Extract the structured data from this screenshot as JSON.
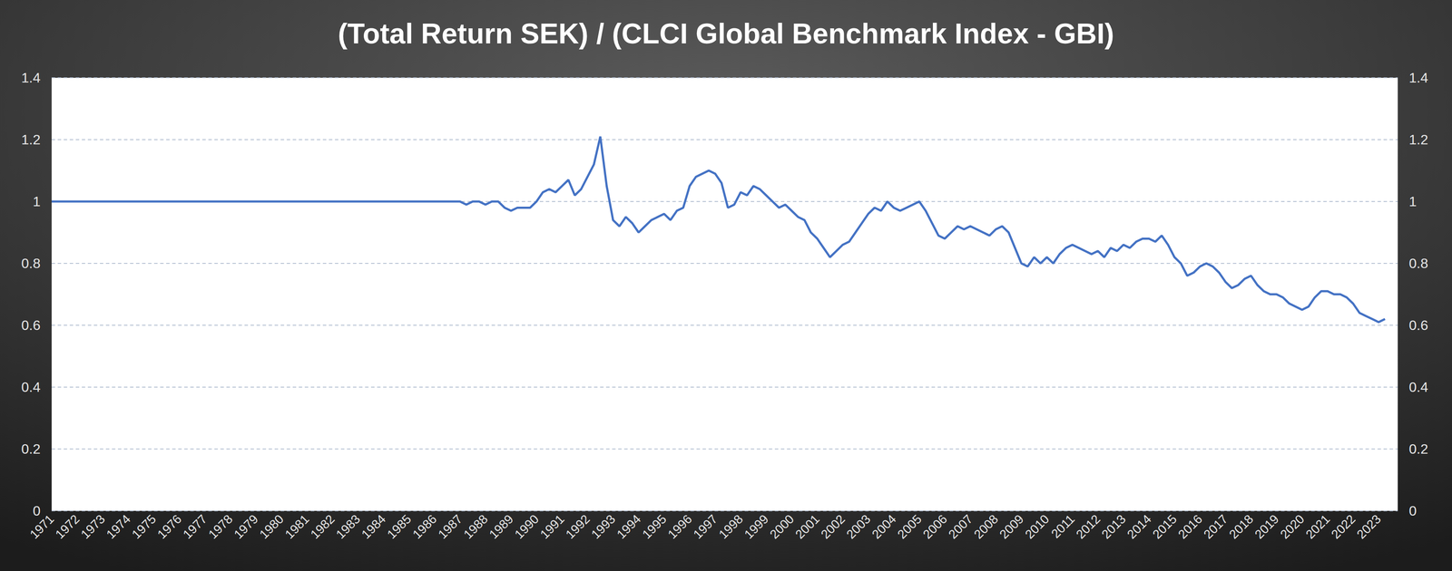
{
  "chart_data": {
    "type": "line",
    "title": "(Total Return SEK) / (CLCI Global Benchmark Index - GBI)",
    "categories": [
      "1971",
      null,
      null,
      null,
      "1972",
      null,
      null,
      null,
      "1973",
      null,
      null,
      null,
      "1974",
      null,
      null,
      null,
      "1975",
      null,
      null,
      null,
      "1976",
      null,
      null,
      null,
      "1977",
      null,
      null,
      null,
      "1978",
      null,
      null,
      null,
      "1979",
      null,
      null,
      null,
      "1980",
      null,
      null,
      null,
      "1981",
      null,
      null,
      null,
      "1982",
      null,
      null,
      null,
      "1983",
      null,
      null,
      null,
      "1984",
      null,
      null,
      null,
      "1985",
      null,
      null,
      null,
      "1986",
      null,
      null,
      null,
      "1987",
      null,
      null,
      null,
      "1988",
      null,
      null,
      null,
      "1989",
      null,
      null,
      null,
      "1990",
      null,
      null,
      null,
      "1991",
      null,
      null,
      null,
      "1992",
      null,
      null,
      null,
      "1993",
      null,
      null,
      null,
      "1994",
      null,
      null,
      null,
      "1995",
      null,
      null,
      null,
      "1996",
      null,
      null,
      null,
      "1997",
      null,
      null,
      null,
      "1998",
      null,
      null,
      null,
      "1999",
      null,
      null,
      null,
      "2000",
      null,
      null,
      null,
      "2001",
      null,
      null,
      null,
      "2002",
      null,
      null,
      null,
      "2003",
      null,
      null,
      null,
      "2004",
      null,
      null,
      null,
      "2005",
      null,
      null,
      null,
      "2006",
      null,
      null,
      null,
      "2007",
      null,
      null,
      null,
      "2008",
      null,
      null,
      null,
      "2009",
      null,
      null,
      null,
      "2010",
      null,
      null,
      null,
      "2011",
      null,
      null,
      null,
      "2012",
      null,
      null,
      null,
      "2013",
      null,
      null,
      null,
      "2014",
      null,
      null,
      null,
      "2015",
      null,
      null,
      null,
      "2016",
      null,
      null,
      null,
      "2017",
      null,
      null,
      null,
      "2018",
      null,
      null,
      null,
      "2019",
      null,
      null,
      null,
      "2020",
      null,
      null,
      null,
      "2021",
      null,
      null,
      null,
      "2022",
      null,
      null,
      null,
      "2023",
      null,
      null,
      null
    ],
    "values": [
      1,
      1,
      1,
      1,
      1,
      1,
      1,
      1,
      1,
      1,
      1,
      1,
      1,
      1,
      1,
      1,
      1,
      1,
      1,
      1,
      1,
      1,
      1,
      1,
      1,
      1,
      1,
      1,
      1,
      1,
      1,
      1,
      1,
      1,
      1,
      1,
      1,
      1,
      1,
      1,
      1,
      1,
      1,
      1,
      1,
      1,
      1,
      1,
      1,
      1,
      1,
      1,
      1,
      1,
      1,
      1,
      1,
      1,
      1,
      1,
      1,
      1,
      1,
      1,
      1,
      0.99,
      1.0,
      1.0,
      0.99,
      1.0,
      1.0,
      0.98,
      0.97,
      0.98,
      0.98,
      0.98,
      1.0,
      1.03,
      1.04,
      1.03,
      1.05,
      1.07,
      1.02,
      1.04,
      1.08,
      1.12,
      1.21,
      1.05,
      0.94,
      0.92,
      0.95,
      0.93,
      0.9,
      0.92,
      0.94,
      0.95,
      0.96,
      0.94,
      0.97,
      0.98,
      1.05,
      1.08,
      1.09,
      1.1,
      1.09,
      1.06,
      0.98,
      0.99,
      1.03,
      1.02,
      1.05,
      1.04,
      1.02,
      1.0,
      0.98,
      0.99,
      0.97,
      0.95,
      0.94,
      0.9,
      0.88,
      0.85,
      0.82,
      0.84,
      0.86,
      0.87,
      0.9,
      0.93,
      0.96,
      0.98,
      0.97,
      1.0,
      0.98,
      0.97,
      0.98,
      0.99,
      1.0,
      0.97,
      0.93,
      0.89,
      0.88,
      0.9,
      0.92,
      0.91,
      0.92,
      0.91,
      0.9,
      0.89,
      0.91,
      0.92,
      0.9,
      0.85,
      0.8,
      0.79,
      0.82,
      0.8,
      0.82,
      0.8,
      0.83,
      0.85,
      0.86,
      0.85,
      0.84,
      0.83,
      0.84,
      0.82,
      0.85,
      0.84,
      0.86,
      0.85,
      0.87,
      0.88,
      0.88,
      0.87,
      0.89,
      0.86,
      0.82,
      0.8,
      0.76,
      0.77,
      0.79,
      0.8,
      0.79,
      0.77,
      0.74,
      0.72,
      0.73,
      0.75,
      0.76,
      0.73,
      0.71,
      0.7,
      0.7,
      0.69,
      0.67,
      0.66,
      0.65,
      0.66,
      0.69,
      0.71,
      0.71,
      0.7,
      0.7,
      0.69,
      0.67,
      0.64,
      0.63,
      0.62,
      0.61,
      0.62,
      null,
      null
    ],
    "color": "#4472c4",
    "ylim": [
      0,
      1.4
    ],
    "yticks": [
      0,
      0.2,
      0.4,
      0.6,
      0.8,
      1,
      1.2,
      1.4
    ],
    "y2lim": [
      0,
      1.4
    ],
    "y2ticks": [
      0,
      0.2,
      0.4,
      0.6,
      0.8,
      1,
      1.2,
      1.4
    ],
    "grid": true
  }
}
